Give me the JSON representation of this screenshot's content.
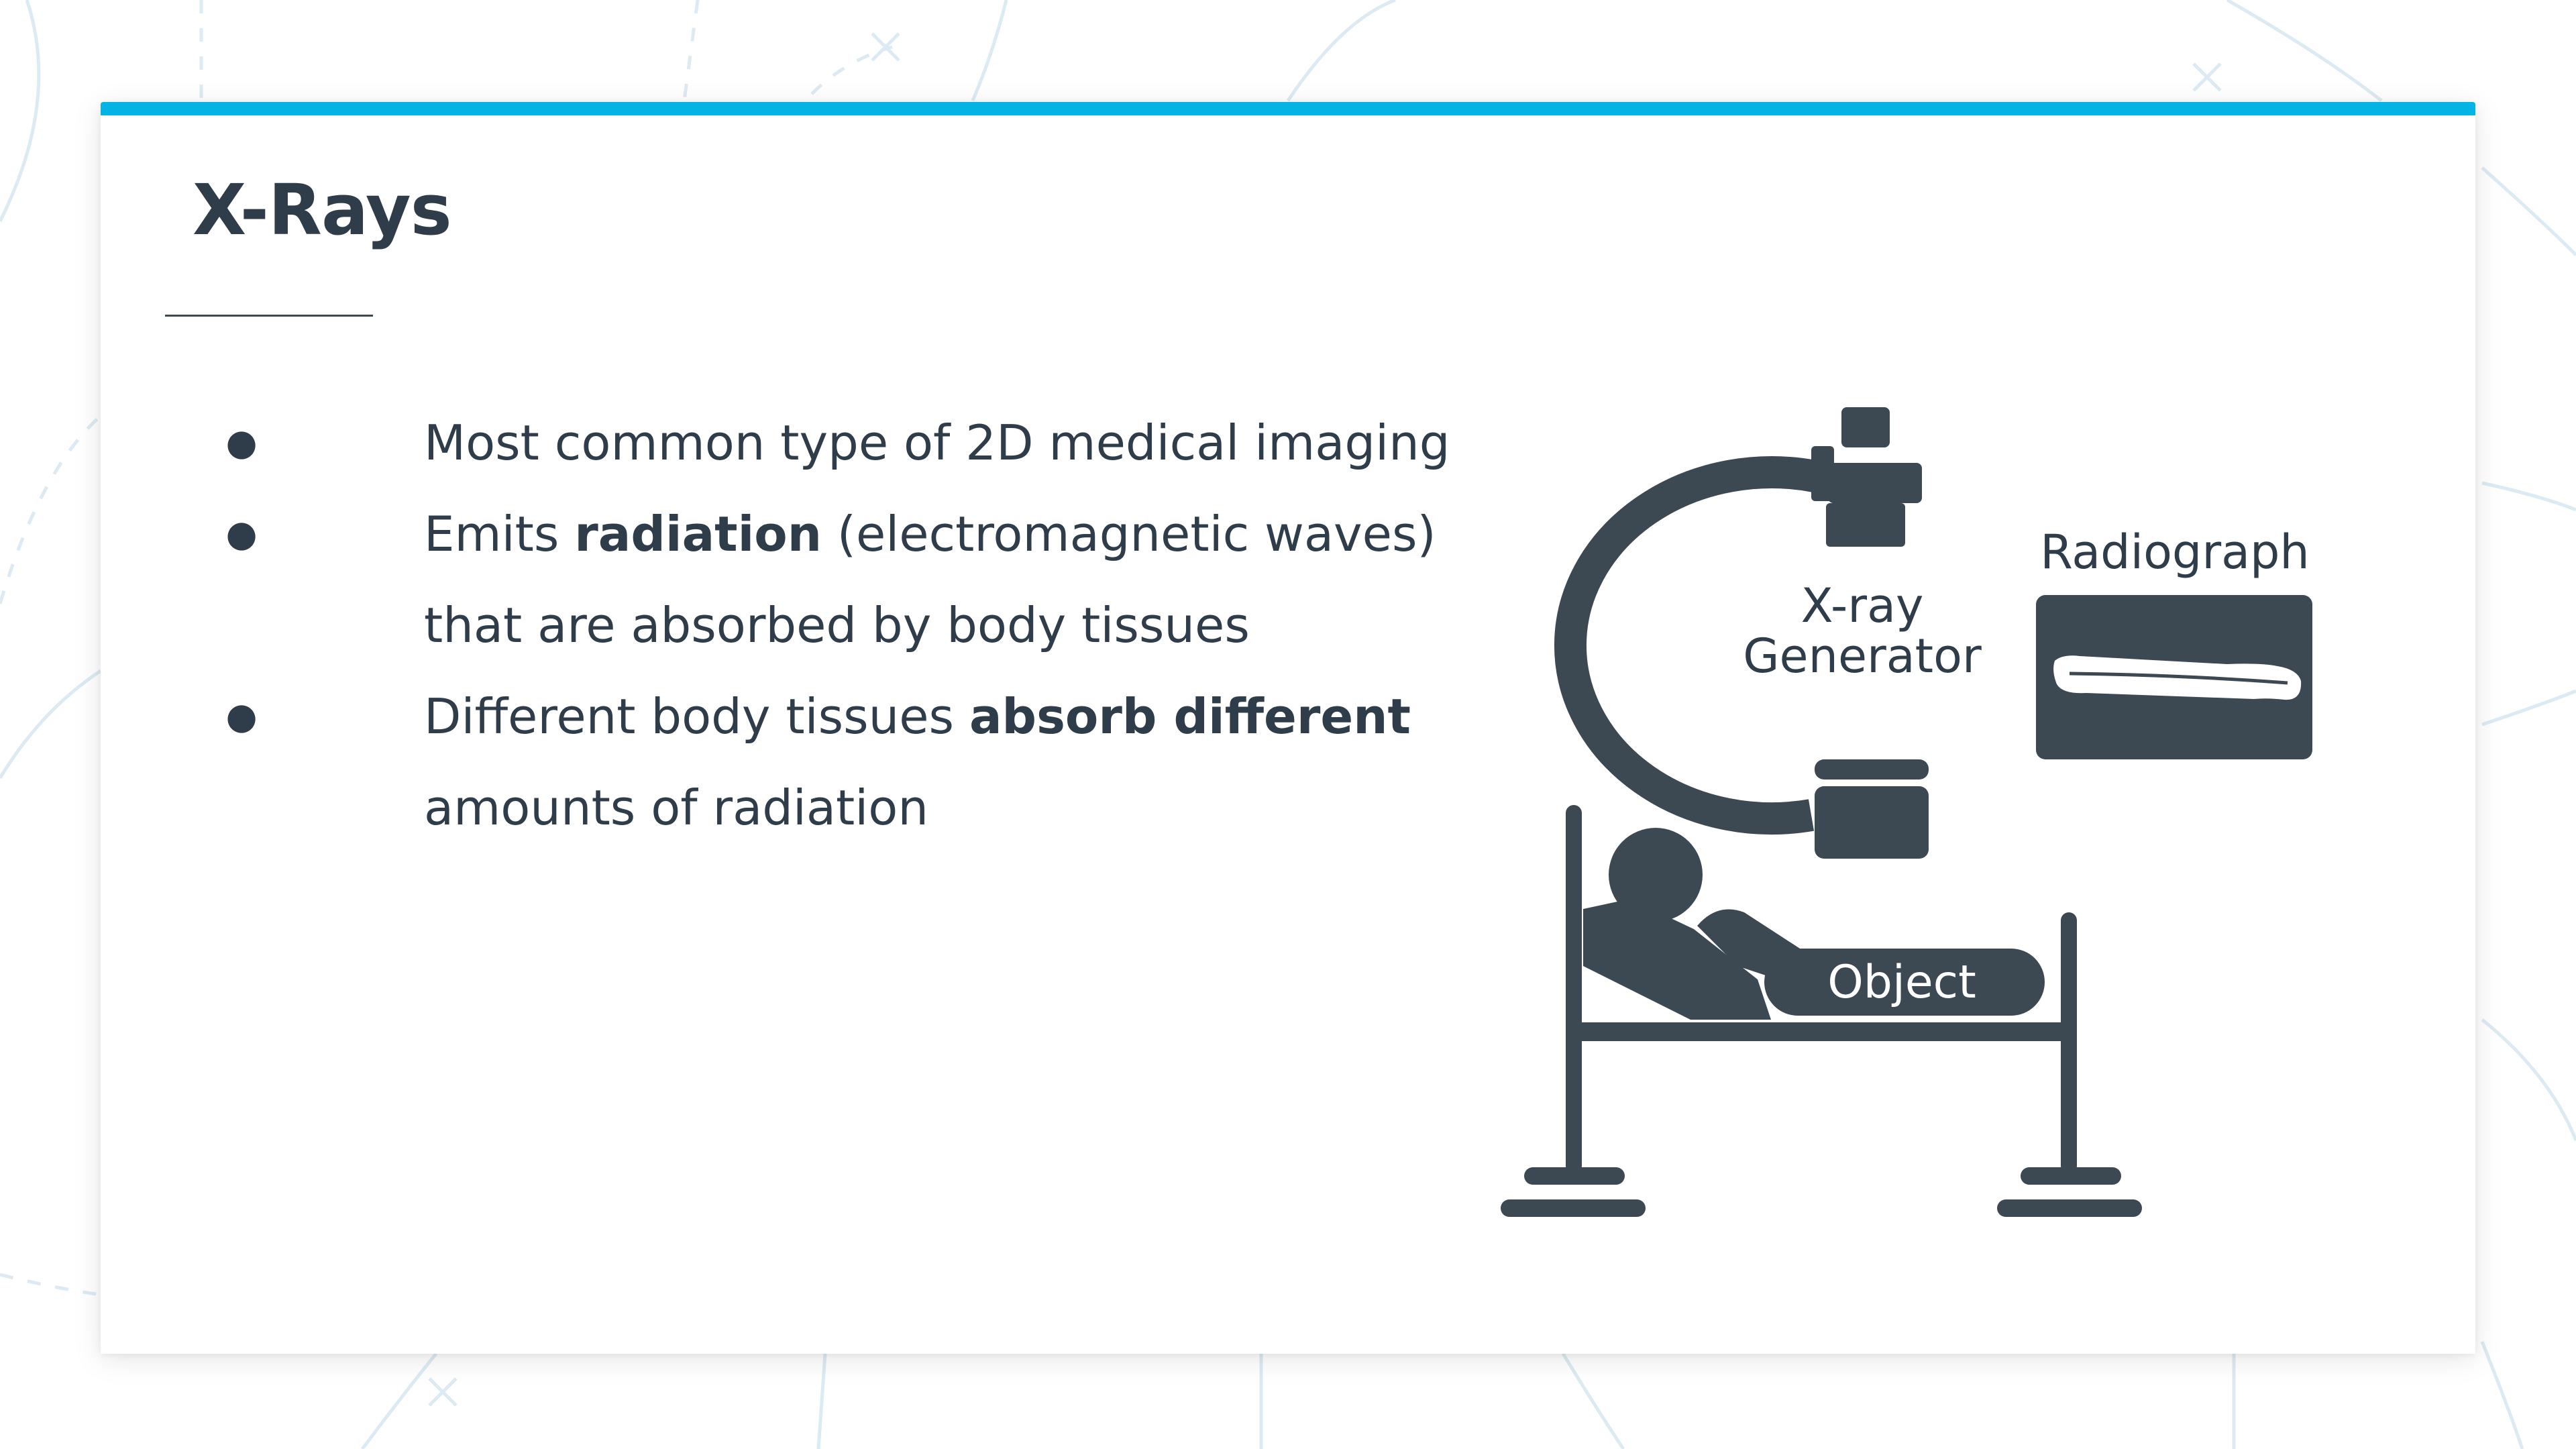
{
  "slide": {
    "title": "X-Rays",
    "bullets": [
      {
        "pre": "Most common type of 2D medical imaging",
        "bold": "",
        "post": ""
      },
      {
        "pre": "Emits ",
        "bold": "radiation",
        "post": " (electromagnetic waves) that are absorbed by body tissues"
      },
      {
        "pre": "Different body tissues ",
        "bold": "absorb different",
        "post": " amounts of radiation"
      }
    ]
  },
  "diagram": {
    "generator_label_line1": "X-ray",
    "generator_label_line2": "Generator",
    "radiograph_label": "Radiograph",
    "object_label": "Object"
  },
  "colors": {
    "accent": "#02b3e4",
    "ink": "#3c4852",
    "text": "#2e3d49"
  }
}
